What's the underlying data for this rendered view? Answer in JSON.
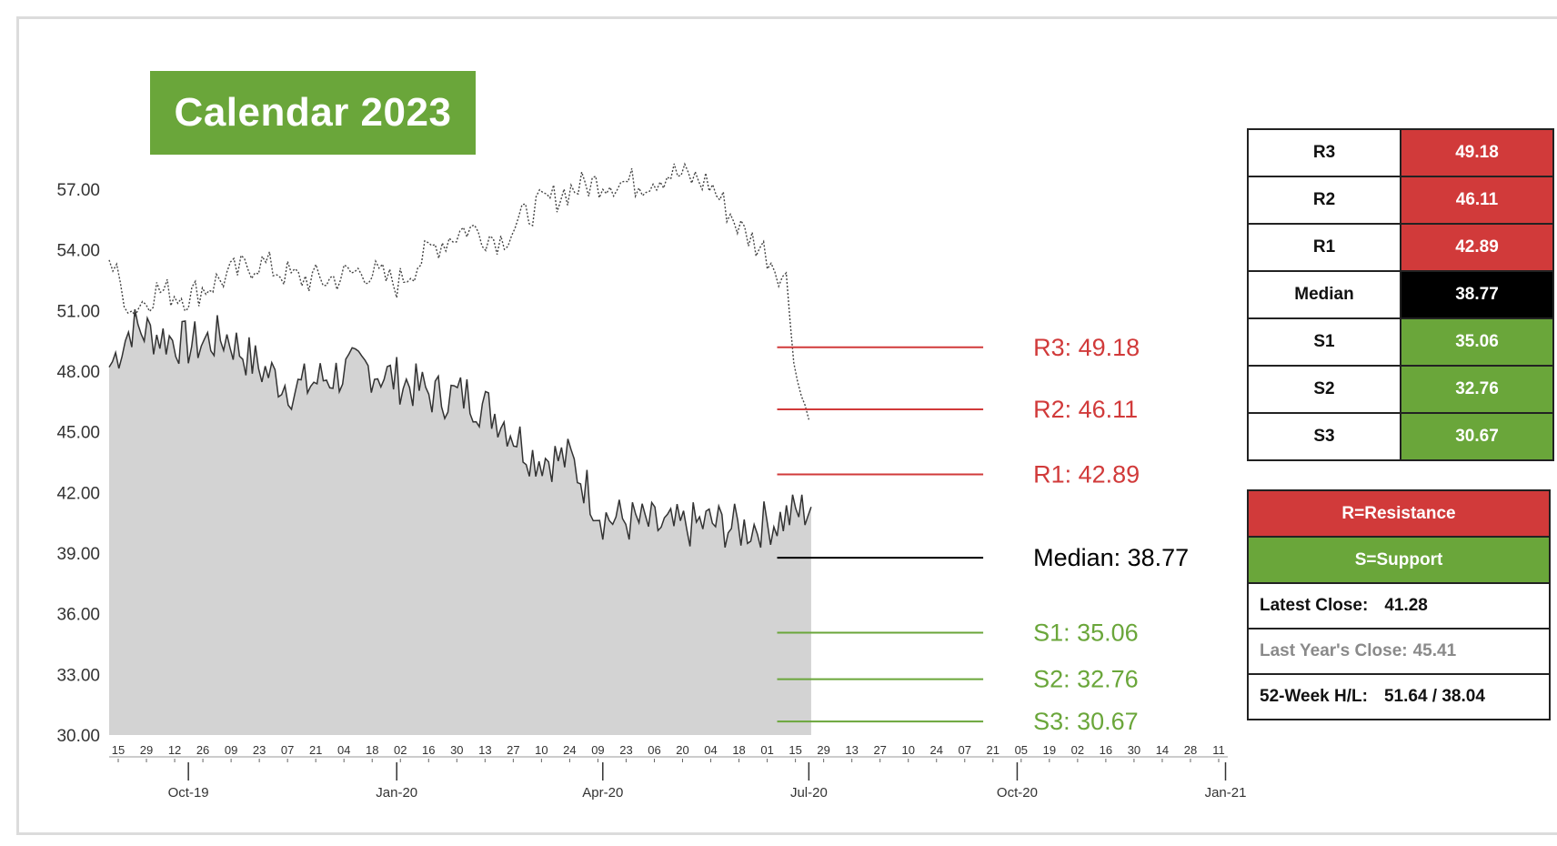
{
  "title": "Calendar 2023",
  "colors": {
    "resistance": "#d13a3a",
    "support": "#6aa63a",
    "median": "#000000",
    "area_fill": "#d3d3d3",
    "price_line": "#333333"
  },
  "chart_data": {
    "type": "area",
    "title": "Calendar 2023",
    "ylim": [
      30,
      58.8
    ],
    "yticks": [
      "57.00",
      "54.00",
      "51.00",
      "48.00",
      "45.00",
      "42.00",
      "39.00",
      "36.00",
      "33.00",
      "30.00"
    ],
    "x_minor_ticks": [
      "15",
      "29",
      "12",
      "26",
      "09",
      "23",
      "07",
      "21",
      "04",
      "18",
      "02",
      "16",
      "30",
      "13",
      "27",
      "10",
      "24",
      "09",
      "23",
      "06",
      "20",
      "04",
      "18",
      "01",
      "15",
      "29",
      "13",
      "27",
      "10",
      "24",
      "07",
      "21",
      "05",
      "19",
      "02",
      "16",
      "30",
      "14",
      "28",
      "11"
    ],
    "x_major_ticks": [
      "Oct-19",
      "Jan-20",
      "Apr-20",
      "Jul-20",
      "Oct-20",
      "Jan-21"
    ],
    "xlim": [
      "2019-09-10",
      "2021-01-16"
    ],
    "grid": false,
    "series": [
      {
        "style": "solid line with shaded area",
        "x": [
          "2019-09-10",
          "2019-09-20",
          "2019-10-01",
          "2019-10-15",
          "2019-11-01",
          "2019-11-15",
          "2019-12-01",
          "2019-12-15",
          "2020-01-01",
          "2020-01-15",
          "2020-02-01",
          "2020-02-15",
          "2020-03-01",
          "2020-03-15",
          "2020-04-01",
          "2020-04-15",
          "2020-05-01",
          "2020-05-15",
          "2020-06-01",
          "2020-06-15",
          "2020-07-01",
          "2020-07-16"
        ],
        "values": [
          48.2,
          50.2,
          49.8,
          49.3,
          49.7,
          48.2,
          47.1,
          47.7,
          48.2,
          47.6,
          46.8,
          46.8,
          45.7,
          43.8,
          43.6,
          40.8,
          40.5,
          40.2,
          40.5,
          40.2,
          40.6,
          41.28
        ]
      },
      {
        "style": "dotted line",
        "x": [
          "2019-09-10",
          "2019-09-20",
          "2019-10-01",
          "2019-10-15",
          "2019-11-01",
          "2019-11-15",
          "2019-12-01",
          "2019-12-15",
          "2020-01-01",
          "2020-01-15",
          "2020-02-01",
          "2020-02-15",
          "2020-03-01",
          "2020-03-15",
          "2020-04-01",
          "2020-04-15",
          "2020-05-01",
          "2020-05-15",
          "2020-06-01",
          "2020-06-15",
          "2020-06-25",
          "2020-07-05",
          "2020-07-10",
          "2020-07-15"
        ],
        "values": [
          53.5,
          51.0,
          52.0,
          51.7,
          52.7,
          53.4,
          52.6,
          52.5,
          53.0,
          52.3,
          54.2,
          55.1,
          54.5,
          56.0,
          57.0,
          57.4,
          57.3,
          57.8,
          57.3,
          55.0,
          54.0,
          52.5,
          47.5,
          45.6
        ]
      }
    ],
    "levels": [
      {
        "label": "R3: 49.18",
        "value": 49.18,
        "kind": "resistance"
      },
      {
        "label": "R2: 46.11",
        "value": 46.11,
        "kind": "resistance"
      },
      {
        "label": "R1: 42.89",
        "value": 42.89,
        "kind": "resistance"
      },
      {
        "label": "Median: 38.77",
        "value": 38.77,
        "kind": "median"
      },
      {
        "label": "S1: 35.06",
        "value": 35.06,
        "kind": "support"
      },
      {
        "label": "S2: 32.76",
        "value": 32.76,
        "kind": "support"
      },
      {
        "label": "S3: 30.67",
        "value": 30.67,
        "kind": "support"
      }
    ],
    "levels_x_range": [
      "2020-07-01",
      "2020-09-30"
    ]
  },
  "levels_table": [
    {
      "name": "R3",
      "value": "49.18",
      "kind": "resistance"
    },
    {
      "name": "R2",
      "value": "46.11",
      "kind": "resistance"
    },
    {
      "name": "R1",
      "value": "42.89",
      "kind": "resistance"
    },
    {
      "name": "Median",
      "value": "38.77",
      "kind": "median"
    },
    {
      "name": "S1",
      "value": "35.06",
      "kind": "support"
    },
    {
      "name": "S2",
      "value": "32.76",
      "kind": "support"
    },
    {
      "name": "S3",
      "value": "30.67",
      "kind": "support"
    }
  ],
  "legend": {
    "resistance": "R=Resistance",
    "support": "S=Support",
    "latest_close_label": "Latest Close:",
    "latest_close_value": "41.28",
    "last_year_label": "Last Year's Close:",
    "last_year_value": "45.41",
    "week52_label": "52-Week H/L:",
    "week52_value": "51.64 / 38.04"
  }
}
